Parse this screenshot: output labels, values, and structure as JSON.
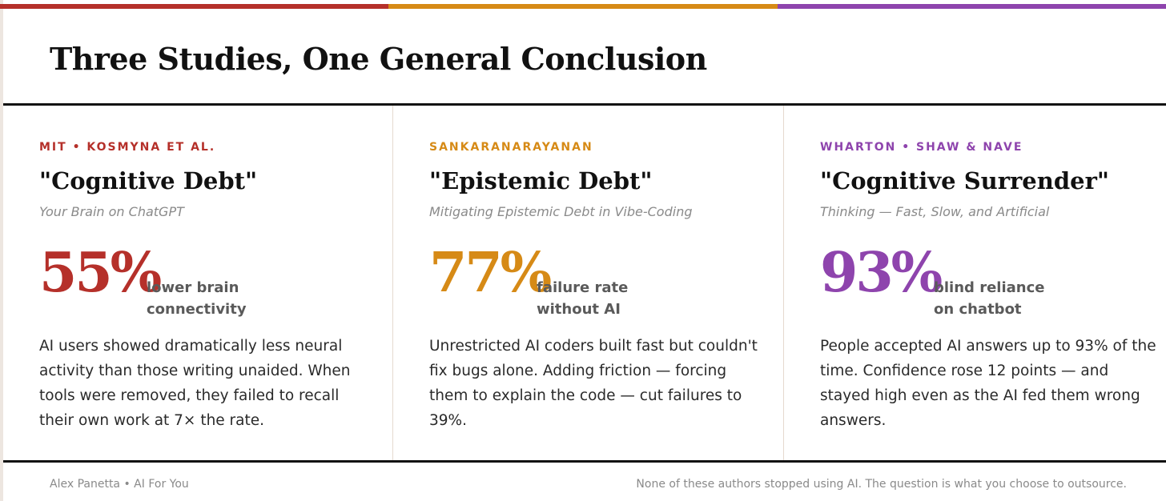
{
  "colors": {
    "red": "#b5302a",
    "amber": "#d68a16",
    "purple": "#8e44ad",
    "rule": "#111111",
    "muted": "#8a8a8a"
  },
  "title": "Three Studies, One General Conclusion",
  "studies": [
    {
      "kicker": "MIT • KOSMYNA ET AL.",
      "name": "\"Cognitive Debt\"",
      "paper": "Your Brain on ChatGPT",
      "stat": "55%",
      "stat_label": "lower brain\nconnectivity",
      "body": "AI users showed dramatically less neural activity than those writing unaided. When tools were removed, they failed to recall their own work at 7× the rate."
    },
    {
      "kicker": "SANKARANARAYANAN",
      "name": "\"Epistemic Debt\"",
      "paper": "Mitigating Epistemic Debt in Vibe-Coding",
      "stat": "77%",
      "stat_label": "failure rate\nwithout AI",
      "body": "Unrestricted AI coders built fast but couldn't fix bugs alone. Adding friction — forcing them to explain the code — cut failures to 39%."
    },
    {
      "kicker": "WHARTON • SHAW & NAVE",
      "name": "\"Cognitive Surrender\"",
      "paper": "Thinking — Fast, Slow, and Artificial",
      "stat": "93%",
      "stat_label": "blind reliance\non chatbot",
      "body": "People accepted AI answers up to 93% of the time. Confidence rose 12 points — and stayed high even as the AI fed them wrong answers."
    }
  ],
  "footer": {
    "left": "Alex Panetta • AI For You",
    "right": "None of these authors stopped using AI. The question is what you choose to outsource."
  }
}
